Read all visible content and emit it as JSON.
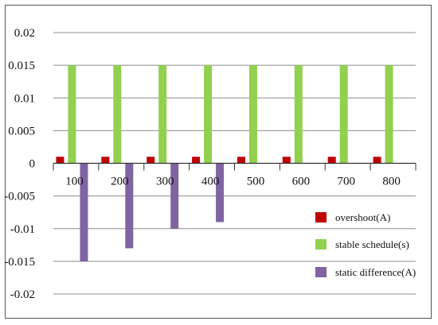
{
  "chart_data": {
    "type": "bar",
    "categories": [
      "100",
      "200",
      "300",
      "400",
      "500",
      "600",
      "700",
      "800"
    ],
    "series": [
      {
        "name": "overshoot(A)",
        "color": "#c00000",
        "values": [
          0.001,
          0.001,
          0.001,
          0.001,
          0.001,
          0.001,
          0.001,
          0.001
        ]
      },
      {
        "name": "stable schedule(s)",
        "color": "#92d050",
        "values": [
          0.015,
          0.015,
          0.015,
          0.015,
          0.015,
          0.015,
          0.015,
          0.015
        ]
      },
      {
        "name": "static difference(A)",
        "color": "#8064a2",
        "values": [
          -0.015,
          -0.013,
          -0.01,
          -0.009,
          0,
          0,
          0,
          0
        ]
      }
    ],
    "yticks": [
      "0.02",
      "0.015",
      "0.01",
      "0.005",
      "0",
      "-0.005",
      "-0.01",
      "-0.015",
      "-0.02"
    ],
    "ylim": [
      -0.02,
      0.02
    ],
    "grid": "horizontal",
    "legend_position": "bottom-right",
    "title": "",
    "xlabel": "",
    "ylabel": ""
  }
}
